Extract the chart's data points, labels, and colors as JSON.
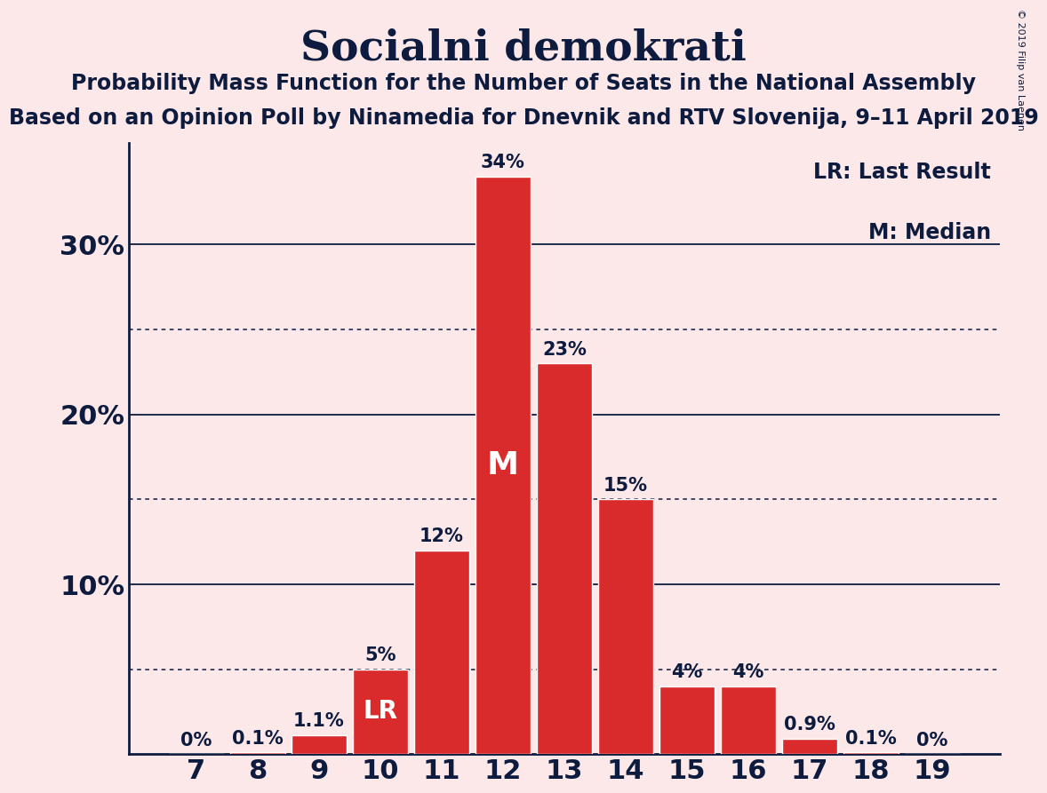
{
  "title": "Socialni demokrati",
  "subtitle1": "Probability Mass Function for the Number of Seats in the National Assembly",
  "subtitle2": "Based on an Opinion Poll by Ninamedia for Dnevnik and RTV Slovenija, 9–11 April 2019",
  "copyright": "© 2019 Filip van Laenen",
  "x_labels": [
    7,
    8,
    9,
    10,
    11,
    12,
    13,
    14,
    15,
    16,
    17,
    18,
    19
  ],
  "values": [
    0.0,
    0.1,
    1.1,
    5.0,
    12.0,
    34.0,
    23.0,
    15.0,
    4.0,
    4.0,
    0.9,
    0.1,
    0.0
  ],
  "bar_labels": [
    "0%",
    "0.1%",
    "1.1%",
    "5%",
    "12%",
    "34%",
    "23%",
    "15%",
    "4%",
    "4%",
    "0.9%",
    "0.1%",
    "0%"
  ],
  "bar_color": "#d92b2b",
  "background_color": "#fce8e8",
  "text_color": "#0d1b3e",
  "lr_bar_index": 3,
  "median_bar_index": 5,
  "lr_label": "LR",
  "median_label": "M",
  "legend_lr": "LR: Last Result",
  "legend_m": "M: Median",
  "ylim": [
    0,
    36
  ],
  "yticks_solid": [
    10,
    20,
    30
  ],
  "yticks_dotted": [
    5,
    15,
    25
  ],
  "title_fontsize": 34,
  "subtitle_fontsize": 17,
  "axis_tick_fontsize": 22,
  "bar_label_fontsize": 15,
  "legend_fontsize": 17
}
